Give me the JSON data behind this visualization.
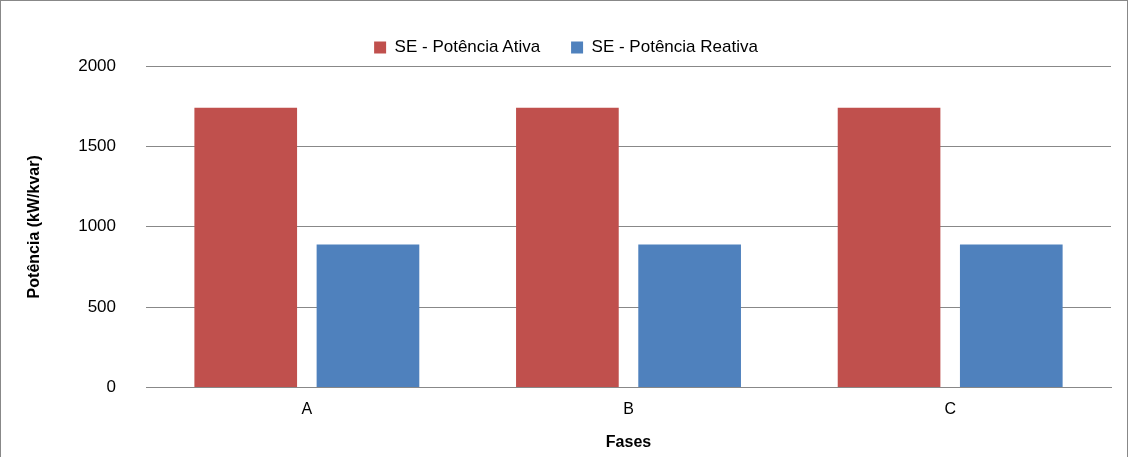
{
  "chart_data": {
    "type": "bar",
    "xlabel": "Fases",
    "ylabel": "Potência (kW/kvar)",
    "categories": [
      "A",
      "B",
      "C"
    ],
    "series": [
      {
        "name": "SE - Potência Ativa",
        "color": "#c0504d",
        "values": [
          1740,
          1740,
          1740
        ]
      },
      {
        "name": "SE - Potência Reativa",
        "color": "#4f81bd",
        "values": [
          890,
          890,
          890
        ]
      }
    ],
    "ylim": [
      0,
      2000
    ],
    "yticks": [
      0,
      500,
      1000,
      1500,
      2000
    ],
    "grid": "y",
    "legend": "top"
  }
}
